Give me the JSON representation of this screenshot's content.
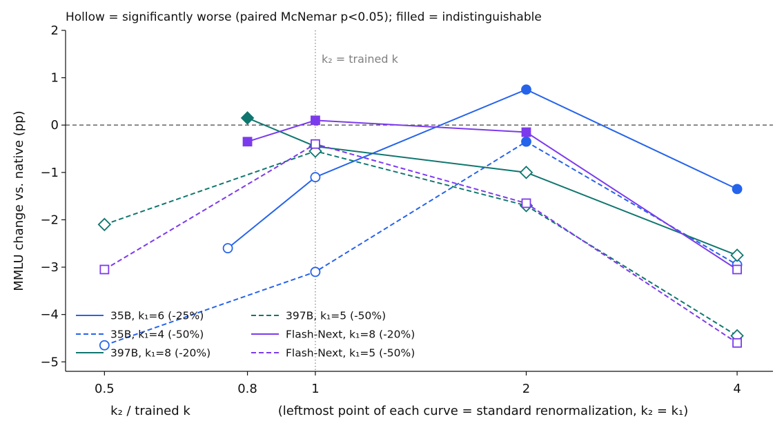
{
  "chart_data": {
    "type": "line",
    "title": "Hollow = significantly worse (paired McNemar p<0.05); filled = indistinguishable",
    "xlabel_main": "k₂ / trained k",
    "xlabel_note": "(leftmost point of each curve = standard renormalization, k₂ = k₁)",
    "ylabel": "MMLU change vs. native (pp)",
    "x_scale": "log2",
    "xlim": [
      0.44,
      4.5
    ],
    "ylim": [
      -5.2,
      2.0
    ],
    "x_ticks": [
      0.5,
      0.8,
      1,
      2,
      4
    ],
    "x_tick_labels": [
      "0.5",
      "0.8",
      "1",
      "2",
      "4"
    ],
    "y_ticks": [
      -5,
      -4,
      -3,
      -2,
      -1,
      0,
      1,
      2
    ],
    "y_tick_labels": [
      "−5",
      "−4",
      "−3",
      "−2",
      "−1",
      "0",
      "1",
      "2"
    ],
    "reference_lines": {
      "horizontal": {
        "y": 0,
        "style": "dashed",
        "color": "#555555"
      },
      "vertical": {
        "x": 1,
        "style": "dotted",
        "color": "#888888",
        "label": "k₂ = trained k"
      }
    },
    "legend": {
      "placement": "lower-left",
      "columns": 2
    },
    "series": [
      {
        "name": "35B, k₁=6 (-25%)",
        "color": "#2563eb",
        "line": "solid",
        "marker": "circle",
        "points": [
          {
            "x": 0.75,
            "y": -2.6,
            "filled": false
          },
          {
            "x": 1,
            "y": -1.1,
            "filled": false
          },
          {
            "x": 2,
            "y": 0.75,
            "filled": true
          },
          {
            "x": 4,
            "y": -1.35,
            "filled": true
          }
        ]
      },
      {
        "name": "35B, k₁=4 (-50%)",
        "color": "#2563eb",
        "line": "dashed",
        "marker": "circle",
        "points": [
          {
            "x": 0.5,
            "y": -4.65,
            "filled": false
          },
          {
            "x": 1,
            "y": -3.1,
            "filled": false
          },
          {
            "x": 2,
            "y": -0.35,
            "filled": true
          },
          {
            "x": 4,
            "y": -2.95,
            "filled": false
          }
        ]
      },
      {
        "name": "397B, k₁=8 (-20%)",
        "color": "#0f766e",
        "line": "solid",
        "marker": "diamond",
        "points": [
          {
            "x": 0.8,
            "y": 0.15,
            "filled": true
          },
          {
            "x": 1,
            "y": -0.45,
            "filled": false
          },
          {
            "x": 2,
            "y": -1.0,
            "filled": false
          },
          {
            "x": 4,
            "y": -2.75,
            "filled": false
          }
        ]
      },
      {
        "name": "397B, k₁=5 (-50%)",
        "color": "#0f766e",
        "line": "dashed",
        "marker": "diamond",
        "points": [
          {
            "x": 0.5,
            "y": -2.1,
            "filled": false
          },
          {
            "x": 1,
            "y": -0.55,
            "filled": false
          },
          {
            "x": 2,
            "y": -1.7,
            "filled": false
          },
          {
            "x": 4,
            "y": -4.45,
            "filled": false
          }
        ]
      },
      {
        "name": "Flash-Next, k₁=8 (-20%)",
        "color": "#7c3aed",
        "line": "solid",
        "marker": "square",
        "points": [
          {
            "x": 0.8,
            "y": -0.35,
            "filled": true
          },
          {
            "x": 1,
            "y": 0.1,
            "filled": true
          },
          {
            "x": 2,
            "y": -0.15,
            "filled": true
          },
          {
            "x": 4,
            "y": -3.05,
            "filled": false
          }
        ]
      },
      {
        "name": "Flash-Next, k₁=5 (-50%)",
        "color": "#7c3aed",
        "line": "dashed",
        "marker": "square",
        "points": [
          {
            "x": 0.5,
            "y": -3.05,
            "filled": false
          },
          {
            "x": 1,
            "y": -0.4,
            "filled": false
          },
          {
            "x": 2,
            "y": -1.65,
            "filled": false
          },
          {
            "x": 4,
            "y": -4.6,
            "filled": false
          }
        ]
      }
    ]
  }
}
